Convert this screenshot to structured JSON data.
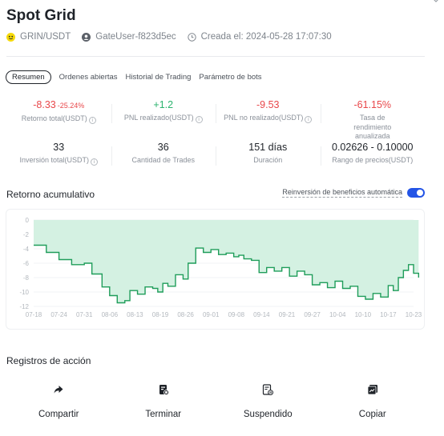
{
  "header": {
    "title": "Spot Grid",
    "pair": "GRIN/USDT",
    "user": "GateUser-f823d5ec",
    "created": "Creada el: 2024-05-28 17:07:30"
  },
  "tabs": [
    {
      "label": "Resumen",
      "active": true
    },
    {
      "label": "Ordenes abiertas"
    },
    {
      "label": "Historial de Trading"
    },
    {
      "label": "Parámetro de bots"
    }
  ],
  "stats_row1": [
    {
      "value": "-8.33",
      "sub": "-25.24%",
      "label": "Retorno total(USDT)",
      "color": "#e8474a"
    },
    {
      "value": "+1.2",
      "sub": "",
      "label": "PNL realizado(USDT)",
      "color": "#2bb36e"
    },
    {
      "value": "-9.53",
      "sub": "",
      "label": "PNL no realizado(USDT)",
      "color": "#e8474a"
    },
    {
      "value": "-61.15%",
      "sub": "",
      "label": "Tasa de rendimiento anualizada",
      "color": "#e8474a"
    }
  ],
  "stats_row2": [
    {
      "value": "33",
      "label": "Inversión total(USDT)"
    },
    {
      "value": "36",
      "label": "Cantidad de Trades"
    },
    {
      "value": "151 días",
      "label": "Duración"
    },
    {
      "value": "0.02626 - 0.10000",
      "label": "Rango de precios(USDT)"
    }
  ],
  "section": {
    "cumulative_title": "Retorno acumulativo",
    "reinvest_label": "Reinversión de beneficios automática",
    "reinvest_on": true,
    "actions_title": "Registros de acción"
  },
  "chart_data": {
    "type": "area",
    "x_ticks": [
      "07-18",
      "07-24",
      "07-31",
      "08-06",
      "08-13",
      "08-19",
      "08-26",
      "09-01",
      "09-08",
      "09-14",
      "09-21",
      "09-27",
      "10-04",
      "10-10",
      "10-17",
      "10-23"
    ],
    "y_ticks": [
      "0",
      "-2",
      "-4",
      "-6",
      "-8",
      "-10",
      "-12"
    ],
    "ylim": [
      -12,
      0
    ],
    "fill_color": "#d4f1e2",
    "line_color": "#1f9d5a",
    "points": [
      [
        0,
        -3.5
      ],
      [
        0.5,
        -4.5
      ],
      [
        1,
        -5.5
      ],
      [
        1.5,
        -6.2
      ],
      [
        2,
        -6.0
      ],
      [
        2.3,
        -7.5
      ],
      [
        2.7,
        -9.3
      ],
      [
        3,
        -10.5
      ],
      [
        3.3,
        -11.5
      ],
      [
        3.6,
        -11.2
      ],
      [
        3.8,
        -9.8
      ],
      [
        4.1,
        -10.3
      ],
      [
        4.4,
        -9.3
      ],
      [
        4.7,
        -9.5
      ],
      [
        4.9,
        -10.0
      ],
      [
        5.1,
        -8.8
      ],
      [
        5.3,
        -9.2
      ],
      [
        5.6,
        -7.6
      ],
      [
        5.9,
        -8.2
      ],
      [
        6.1,
        -6.0
      ],
      [
        6.4,
        -3.9
      ],
      [
        6.7,
        -4.5
      ],
      [
        7,
        -4.1
      ],
      [
        7.3,
        -4.8
      ],
      [
        7.6,
        -4.6
      ],
      [
        7.9,
        -5.1
      ],
      [
        8.1,
        -4.9
      ],
      [
        8.3,
        -5.4
      ],
      [
        8.6,
        -5.6
      ],
      [
        8.9,
        -7.3
      ],
      [
        9.2,
        -6.6
      ],
      [
        9.5,
        -7.1
      ],
      [
        9.8,
        -6.6
      ],
      [
        10.1,
        -7.8
      ],
      [
        10.4,
        -7.1
      ],
      [
        10.7,
        -7.6
      ],
      [
        11,
        -9.0
      ],
      [
        11.3,
        -8.7
      ],
      [
        11.6,
        -9.4
      ],
      [
        11.9,
        -8.5
      ],
      [
        12.2,
        -9.5
      ],
      [
        12.5,
        -9.2
      ],
      [
        12.8,
        -10.6
      ],
      [
        13.1,
        -11.0
      ],
      [
        13.4,
        -10.2
      ],
      [
        13.7,
        -10.7
      ],
      [
        14,
        -9.1
      ],
      [
        14.2,
        -9.8
      ],
      [
        14.4,
        -8.0
      ],
      [
        14.6,
        -7.0
      ],
      [
        14.8,
        -6.2
      ],
      [
        15.0,
        -7.4
      ],
      [
        15.2,
        -8.0
      ]
    ]
  },
  "actions": [
    {
      "label": "Compartir",
      "icon": "share-icon"
    },
    {
      "label": "Terminar",
      "icon": "terminate-icon"
    },
    {
      "label": "Suspendido",
      "icon": "suspend-icon"
    },
    {
      "label": "Copiar",
      "icon": "copy-icon"
    }
  ]
}
